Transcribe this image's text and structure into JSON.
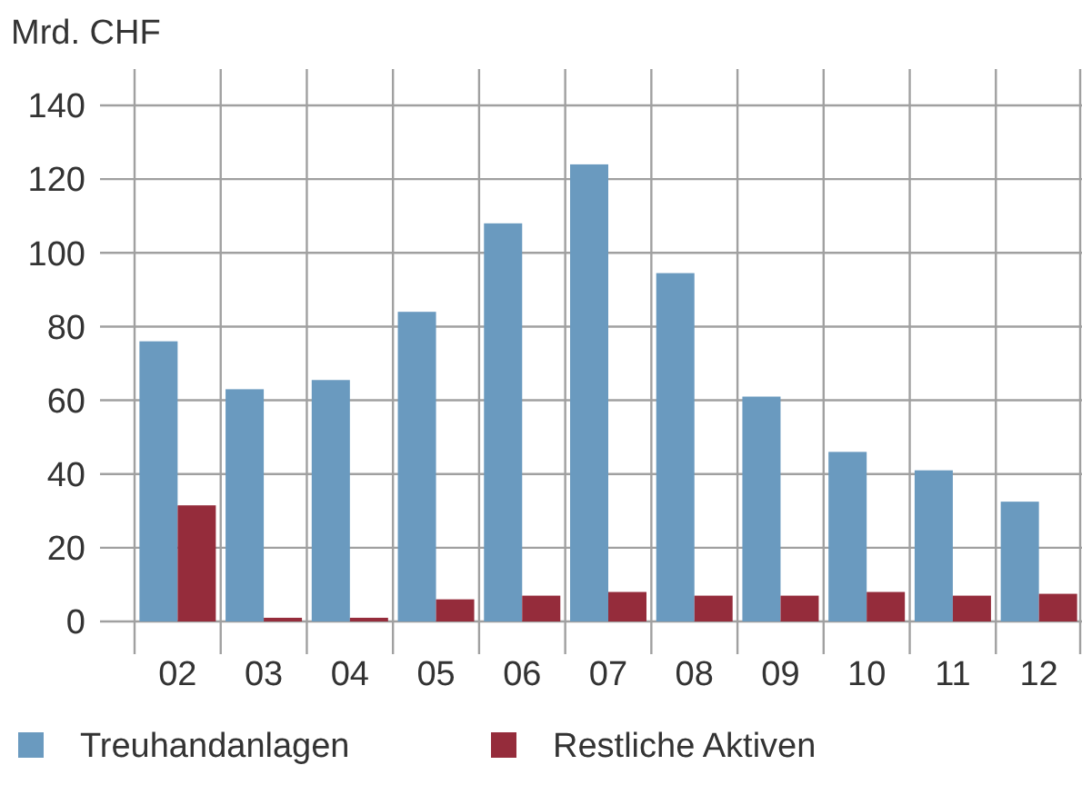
{
  "chart_data": {
    "type": "bar",
    "ylabel": "Mrd. CHF",
    "categories": [
      "02",
      "03",
      "04",
      "05",
      "06",
      "07",
      "08",
      "09",
      "10",
      "11",
      "12"
    ],
    "series": [
      {
        "name": "Treuhandanlagen",
        "color": "#6a9abf",
        "values": [
          76,
          63,
          65.5,
          84,
          108,
          124,
          94.5,
          61,
          46,
          41,
          32.5
        ]
      },
      {
        "name": "Restliche Aktiven",
        "color": "#952c3b",
        "values": [
          31.5,
          1,
          1,
          6,
          7,
          8,
          7,
          7,
          8,
          7,
          7.5
        ]
      }
    ],
    "ylim": [
      0,
      140
    ],
    "yticks": [
      0,
      20,
      40,
      60,
      80,
      100,
      120,
      140
    ],
    "grid": true,
    "legend": "bottom"
  }
}
